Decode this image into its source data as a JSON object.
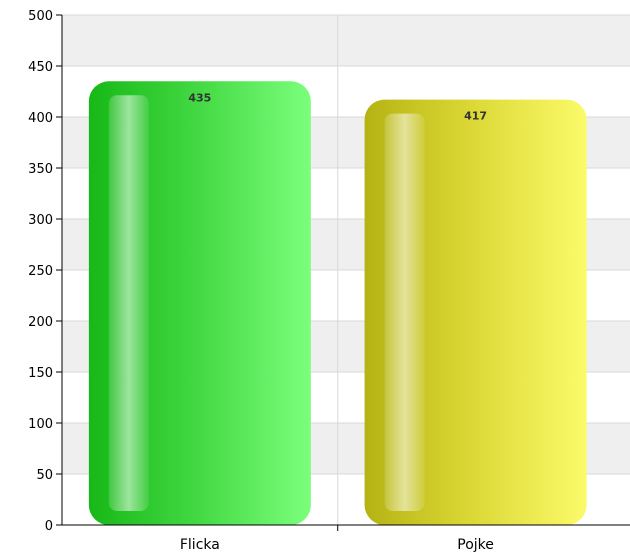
{
  "chart_data": {
    "type": "bar",
    "categories": [
      "Flicka",
      "Pojke"
    ],
    "values": [
      435,
      417
    ],
    "data_labels": [
      "435",
      "417"
    ],
    "ylim": [
      0,
      500
    ],
    "y_ticks": [
      0,
      50,
      100,
      150,
      200,
      250,
      300,
      350,
      400,
      450,
      500
    ],
    "y_tick_labels": [
      "0",
      "50",
      "100",
      "150",
      "200",
      "250",
      "300",
      "350",
      "400",
      "450",
      "500"
    ],
    "colors": [
      "#3ad43a",
      "#e9e84a"
    ],
    "grid": true,
    "title": "",
    "xlabel": "",
    "ylabel": ""
  }
}
